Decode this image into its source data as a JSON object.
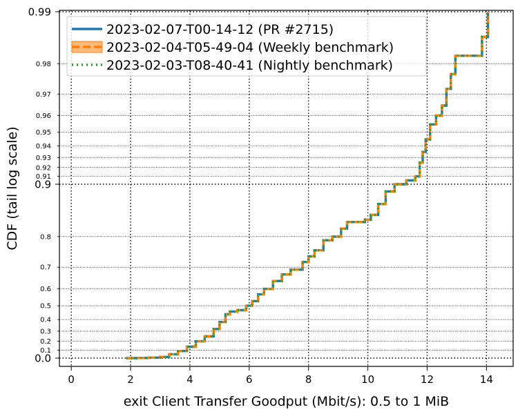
{
  "chart_data": {
    "type": "line",
    "subtype": "step-cdf",
    "xlabel": "exit Client Transfer Goodput (Mbit/s): 0.5 to 1 MiB",
    "ylabel": "CDF (tail log scale)",
    "xlim": [
      -0.4,
      14.9
    ],
    "x_ticks": [
      0,
      2,
      4,
      6,
      8,
      10,
      12,
      14
    ],
    "y_scale": "tail-log",
    "y_ticks_major": [
      0.0,
      0.9,
      0.99
    ],
    "y_ticks_minor": [
      0.1,
      0.2,
      0.3,
      0.4,
      0.5,
      0.6,
      0.7,
      0.8,
      0.91,
      0.92,
      0.93,
      0.94,
      0.95,
      0.96,
      0.97,
      0.98
    ],
    "legend_position": "top-left",
    "grid": true,
    "series": [
      {
        "name": "2023-02-07-T00-14-12 (PR #2715)",
        "color": "#1f77b4",
        "style": "solid"
      },
      {
        "name": "2023-02-04-T05-49-04 (Weekly benchmark)",
        "color": "#ff7f0e",
        "style": "dashed"
      },
      {
        "name": "2023-02-03-T08-40-41 (Nightly benchmark)",
        "color": "#2ca02c",
        "style": "dotted"
      }
    ],
    "curve": [
      [
        1.85,
        0.0
      ],
      [
        2.2,
        0.002
      ],
      [
        2.6,
        0.006
      ],
      [
        3.0,
        0.015
      ],
      [
        3.3,
        0.05
      ],
      [
        3.6,
        0.09
      ],
      [
        3.9,
        0.14
      ],
      [
        4.2,
        0.2
      ],
      [
        4.5,
        0.25
      ],
      [
        4.8,
        0.32
      ],
      [
        5.0,
        0.38
      ],
      [
        5.2,
        0.44
      ],
      [
        5.35,
        0.46
      ],
      [
        5.6,
        0.47
      ],
      [
        5.9,
        0.5
      ],
      [
        6.1,
        0.53
      ],
      [
        6.3,
        0.57
      ],
      [
        6.5,
        0.6
      ],
      [
        6.8,
        0.64
      ],
      [
        7.1,
        0.67
      ],
      [
        7.4,
        0.69
      ],
      [
        7.8,
        0.72
      ],
      [
        8.0,
        0.74
      ],
      [
        8.2,
        0.76
      ],
      [
        8.5,
        0.79
      ],
      [
        8.8,
        0.8
      ],
      [
        9.1,
        0.82
      ],
      [
        9.3,
        0.835
      ],
      [
        9.9,
        0.84
      ],
      [
        10.1,
        0.85
      ],
      [
        10.35,
        0.87
      ],
      [
        10.6,
        0.89
      ],
      [
        10.9,
        0.9
      ],
      [
        11.3,
        0.905
      ],
      [
        11.6,
        0.91
      ],
      [
        11.75,
        0.925
      ],
      [
        11.85,
        0.935
      ],
      [
        11.95,
        0.945
      ],
      [
        12.1,
        0.955
      ],
      [
        12.3,
        0.96
      ],
      [
        12.5,
        0.965
      ],
      [
        12.65,
        0.972
      ],
      [
        12.8,
        0.977
      ],
      [
        12.95,
        0.982
      ],
      [
        13.6,
        0.982
      ],
      [
        13.85,
        0.986
      ],
      [
        14.05,
        0.987
      ],
      [
        14.05,
        0.99
      ]
    ]
  }
}
